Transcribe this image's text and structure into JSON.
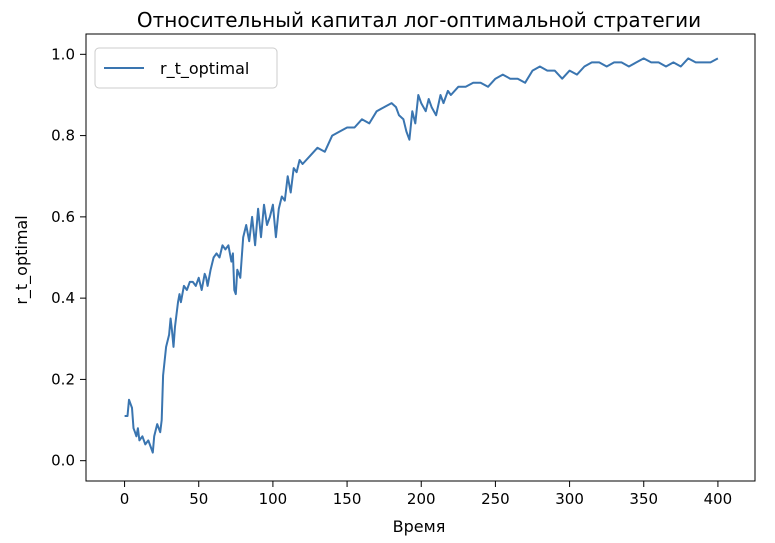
{
  "chart_data": {
    "type": "line",
    "title": "Относительный капитал лог-оптимальной стратегии",
    "xlabel": "Время",
    "ylabel": "r_t_optimal",
    "xlim": [
      -26,
      425
    ],
    "ylim": [
      -0.05,
      1.05
    ],
    "xticks": [
      0,
      50,
      100,
      150,
      200,
      250,
      300,
      350,
      400
    ],
    "yticks": [
      0.0,
      0.2,
      0.4,
      0.6,
      0.8,
      1.0
    ],
    "ytick_labels": [
      "0.0",
      "0.2",
      "0.4",
      "0.6",
      "0.8",
      "1.0"
    ],
    "grid": false,
    "legend_position": "top-left",
    "series": [
      {
        "name": "r_t_optimal",
        "color": "#3a75b0",
        "x": [
          0,
          2,
          3,
          4,
          5,
          6,
          7,
          8,
          9,
          10,
          12,
          14,
          16,
          18,
          19,
          20,
          22,
          24,
          25,
          26,
          28,
          30,
          31,
          32,
          33,
          34,
          35,
          36,
          37,
          38,
          40,
          42,
          44,
          46,
          48,
          50,
          52,
          54,
          55,
          56,
          58,
          60,
          62,
          64,
          66,
          68,
          70,
          72,
          73,
          74,
          75,
          76,
          78,
          80,
          82,
          84,
          86,
          88,
          90,
          92,
          94,
          96,
          98,
          100,
          102,
          104,
          106,
          108,
          110,
          112,
          114,
          116,
          118,
          120,
          125,
          130,
          135,
          140,
          145,
          150,
          155,
          160,
          165,
          170,
          175,
          180,
          183,
          185,
          188,
          190,
          192,
          194,
          196,
          198,
          200,
          203,
          205,
          207,
          210,
          213,
          215,
          218,
          220,
          225,
          230,
          235,
          240,
          245,
          250,
          255,
          260,
          265,
          270,
          275,
          280,
          285,
          290,
          295,
          300,
          305,
          310,
          315,
          320,
          325,
          330,
          335,
          340,
          345,
          350,
          355,
          360,
          365,
          370,
          375,
          380,
          385,
          390,
          395,
          400
        ],
        "y": [
          0.11,
          0.11,
          0.15,
          0.14,
          0.13,
          0.08,
          0.07,
          0.06,
          0.08,
          0.05,
          0.06,
          0.04,
          0.05,
          0.03,
          0.02,
          0.06,
          0.09,
          0.07,
          0.1,
          0.21,
          0.28,
          0.31,
          0.35,
          0.32,
          0.28,
          0.33,
          0.36,
          0.39,
          0.41,
          0.39,
          0.43,
          0.42,
          0.44,
          0.44,
          0.43,
          0.45,
          0.42,
          0.46,
          0.45,
          0.43,
          0.47,
          0.5,
          0.51,
          0.5,
          0.53,
          0.52,
          0.53,
          0.49,
          0.51,
          0.42,
          0.41,
          0.47,
          0.45,
          0.55,
          0.58,
          0.54,
          0.6,
          0.53,
          0.62,
          0.55,
          0.63,
          0.58,
          0.6,
          0.63,
          0.55,
          0.62,
          0.65,
          0.64,
          0.7,
          0.66,
          0.72,
          0.71,
          0.74,
          0.73,
          0.75,
          0.77,
          0.76,
          0.8,
          0.81,
          0.82,
          0.82,
          0.84,
          0.83,
          0.86,
          0.87,
          0.88,
          0.87,
          0.85,
          0.84,
          0.81,
          0.79,
          0.86,
          0.83,
          0.9,
          0.88,
          0.86,
          0.89,
          0.87,
          0.85,
          0.9,
          0.88,
          0.91,
          0.9,
          0.92,
          0.92,
          0.93,
          0.93,
          0.92,
          0.94,
          0.95,
          0.94,
          0.94,
          0.93,
          0.96,
          0.97,
          0.96,
          0.96,
          0.94,
          0.96,
          0.95,
          0.97,
          0.98,
          0.98,
          0.97,
          0.98,
          0.98,
          0.97,
          0.98,
          0.99,
          0.98,
          0.98,
          0.97,
          0.98,
          0.97,
          0.99,
          0.98,
          0.98,
          0.98,
          0.99
        ]
      }
    ]
  }
}
